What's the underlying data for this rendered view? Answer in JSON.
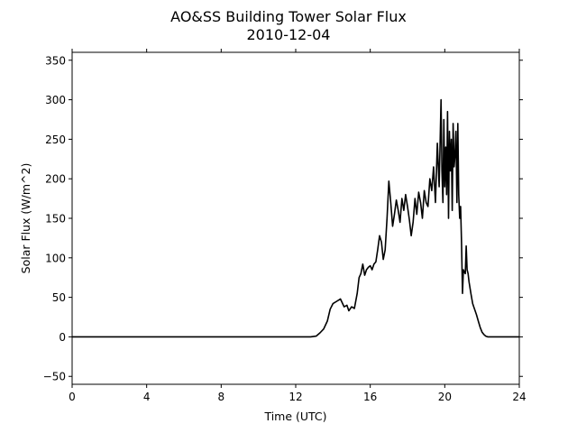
{
  "chart_data": {
    "type": "line",
    "title": "AO&SS Building Tower Solar Flux",
    "subtitle": "2010-12-04",
    "xlabel": "Time (UTC)",
    "ylabel": "Solar Flux (W/m^2)",
    "xlim": [
      0,
      24
    ],
    "ylim": [
      -60,
      360
    ],
    "xticks": [
      0,
      4,
      8,
      12,
      16,
      20,
      24
    ],
    "yticks": [
      -50,
      0,
      50,
      100,
      150,
      200,
      250,
      300,
      350
    ],
    "xtick_labels": [
      "0",
      "4",
      "8",
      "12",
      "16",
      "20",
      "24"
    ],
    "ytick_labels": [
      "−50",
      "0",
      "50",
      "100",
      "150",
      "200",
      "250",
      "300",
      "350"
    ],
    "grid": false,
    "series": [
      {
        "color": "#000000",
        "x": [
          0,
          12.8,
          13.1,
          13.3,
          13.5,
          13.7,
          13.85,
          14.0,
          14.2,
          14.4,
          14.6,
          14.75,
          14.85,
          15.0,
          15.15,
          15.3,
          15.4,
          15.5,
          15.6,
          15.7,
          15.8,
          15.9,
          16.0,
          16.1,
          16.2,
          16.3,
          16.4,
          16.5,
          16.6,
          16.7,
          16.8,
          16.9,
          17.0,
          17.1,
          17.2,
          17.3,
          17.4,
          17.5,
          17.6,
          17.7,
          17.8,
          17.9,
          18.0,
          18.1,
          18.2,
          18.3,
          18.4,
          18.5,
          18.6,
          18.7,
          18.8,
          18.9,
          19.0,
          19.1,
          19.2,
          19.3,
          19.4,
          19.5,
          19.6,
          19.7,
          19.8,
          19.85,
          19.9,
          19.95,
          20.0,
          20.05,
          20.1,
          20.15,
          20.2,
          20.25,
          20.3,
          20.35,
          20.4,
          20.45,
          20.5,
          20.55,
          20.6,
          20.65,
          20.7,
          20.75,
          20.8,
          20.85,
          20.9,
          20.95,
          21.0,
          21.05,
          21.1,
          21.15,
          21.2,
          21.25,
          21.3,
          21.4,
          21.5,
          21.6,
          21.7,
          21.8,
          21.9,
          22.0,
          22.1,
          22.2,
          22.3,
          22.4,
          22.5,
          22.6,
          22.8,
          23.0,
          24.0
        ],
        "y": [
          0,
          0,
          1,
          5,
          10,
          20,
          35,
          42,
          45,
          48,
          38,
          40,
          33,
          38,
          36,
          55,
          75,
          80,
          92,
          78,
          85,
          88,
          90,
          85,
          92,
          95,
          110,
          128,
          120,
          98,
          110,
          150,
          197,
          170,
          140,
          155,
          173,
          160,
          145,
          175,
          160,
          180,
          165,
          148,
          128,
          145,
          175,
          155,
          183,
          170,
          150,
          185,
          170,
          165,
          200,
          185,
          215,
          170,
          245,
          190,
          300,
          210,
          170,
          275,
          190,
          240,
          180,
          285,
          150,
          260,
          210,
          250,
          160,
          270,
          215,
          230,
          260,
          170,
          270,
          180,
          150,
          165,
          120,
          55,
          85,
          82,
          80,
          115,
          85,
          80,
          70,
          55,
          42,
          35,
          28,
          20,
          12,
          6,
          3,
          1,
          0,
          0,
          0,
          0,
          0,
          0,
          0
        ]
      }
    ]
  }
}
